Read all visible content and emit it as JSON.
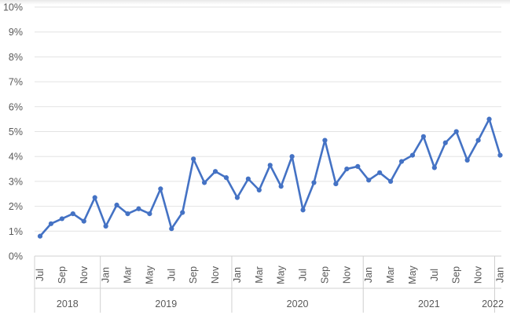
{
  "colors": {
    "series": "#4472C4",
    "grid": "#e3e3e3",
    "text": "#595959"
  },
  "chart_data": {
    "type": "line",
    "title": "",
    "xlabel": "",
    "ylabel": "",
    "ylim": [
      0,
      10
    ],
    "y_ticks": [
      "0%",
      "1%",
      "2%",
      "3%",
      "4%",
      "5%",
      "6%",
      "7%",
      "8%",
      "9%",
      "10%"
    ],
    "grid": true,
    "legend": "none",
    "x": [
      "2018-07",
      "2018-08",
      "2018-09",
      "2018-10",
      "2018-11",
      "2018-12",
      "2019-01",
      "2019-02",
      "2019-03",
      "2019-04",
      "2019-05",
      "2019-06",
      "2019-07",
      "2019-08",
      "2019-09",
      "2019-10",
      "2019-11",
      "2019-12",
      "2020-01",
      "2020-02",
      "2020-03",
      "2020-04",
      "2020-05",
      "2020-06",
      "2020-07",
      "2020-08",
      "2020-09",
      "2020-10",
      "2020-11",
      "2020-12",
      "2021-01",
      "2021-02",
      "2021-03",
      "2021-04",
      "2021-05",
      "2021-06",
      "2021-07",
      "2021-08",
      "2021-09",
      "2021-10",
      "2021-11",
      "2021-12",
      "2022-01"
    ],
    "month_labels": [
      "Jul",
      "Sep",
      "Nov",
      "Jan",
      "Mar",
      "May",
      "Jul",
      "Sep",
      "Nov",
      "Jan",
      "Mar",
      "May",
      "Jul",
      "Sep",
      "Nov",
      "Jan",
      "Mar",
      "May",
      "Jul",
      "Sep",
      "Nov",
      "Jan"
    ],
    "year_labels": [
      "2018",
      "2019",
      "2020",
      "2021",
      "2022"
    ],
    "series": [
      {
        "values": [
          0.8,
          1.3,
          1.5,
          1.7,
          1.4,
          2.35,
          1.2,
          2.05,
          1.7,
          1.9,
          1.7,
          2.7,
          1.1,
          1.75,
          3.9,
          2.95,
          3.4,
          3.15,
          2.35,
          3.1,
          2.65,
          3.65,
          2.8,
          4.0,
          1.85,
          2.95,
          4.65,
          2.9,
          3.5,
          3.6,
          3.05,
          3.35,
          3.0,
          3.8,
          4.05,
          4.8,
          3.55,
          4.55,
          5.0,
          3.85,
          4.65,
          5.5,
          4.05
        ]
      }
    ]
  }
}
